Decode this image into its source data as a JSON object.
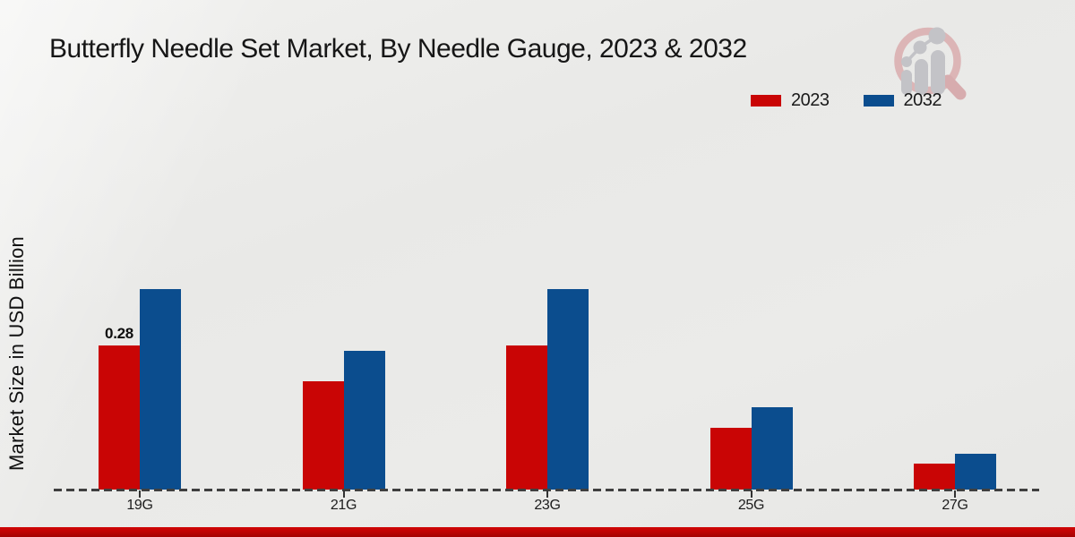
{
  "chart_data": {
    "type": "bar",
    "title": "Butterfly Needle Set Market, By Needle Gauge, 2023 & 2032",
    "categories": [
      "19G",
      "21G",
      "23G",
      "25G",
      "27G"
    ],
    "series": [
      {
        "name": "2023",
        "color": "#c90505",
        "values": [
          0.28,
          0.21,
          0.28,
          0.12,
          0.05
        ]
      },
      {
        "name": "2032",
        "color": "#0b4d8e",
        "values": [
          0.39,
          0.27,
          0.39,
          0.16,
          0.07
        ]
      }
    ],
    "xlabel": "",
    "ylabel": "Market Size in USD Billion",
    "ylim": [
      0,
      0.45
    ],
    "grid": false,
    "y_axis_ticks_visible": false,
    "baseline_style": "dashed",
    "legend_position": "top-right",
    "annotations": [
      {
        "series": "2023",
        "category": "19G",
        "text": "0.28"
      }
    ]
  },
  "legend": {
    "items": [
      {
        "label": "2023",
        "color": "#c90505"
      },
      {
        "label": "2032",
        "color": "#0b4d8e"
      }
    ]
  },
  "branding": {
    "logo_icon": "magnifier-growth-chart-logo",
    "accent_bar_color": "#c00404"
  }
}
